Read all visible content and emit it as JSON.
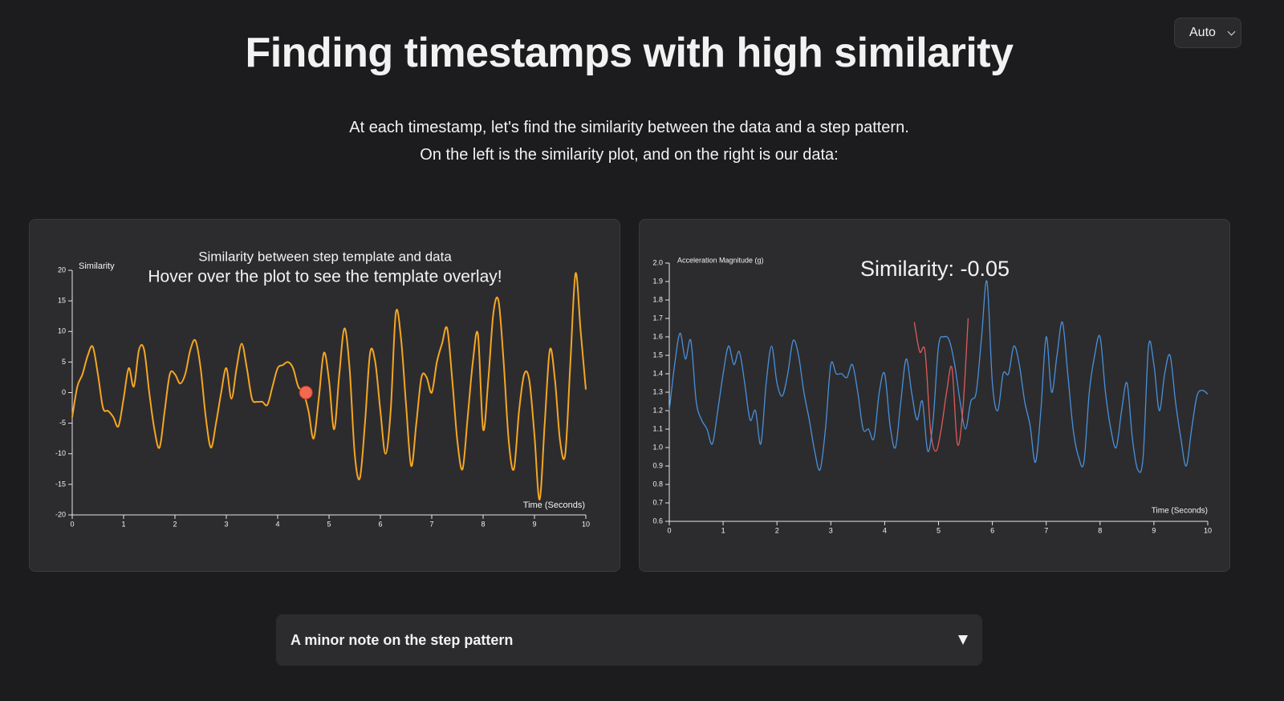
{
  "header": {
    "title": "Finding timestamps with high similarity",
    "intro": [
      "At each timestamp, let's find the similarity between the data and a step pattern.",
      "On the left is the similarity plot, and on the right is our data:"
    ]
  },
  "theme_select": "Auto",
  "details": {
    "summary": "A minor note on the step pattern"
  },
  "chart_data": [
    {
      "type": "line",
      "title": "Similarity between step template and data",
      "subtitle": "Hover over the plot to see the template overlay!",
      "x_label": "Time (Seconds)",
      "y_label": "Similarity",
      "color": "#f5a623",
      "x": [
        0,
        0.1,
        0.2,
        0.3,
        0.4,
        0.5,
        0.6,
        0.7,
        0.8,
        0.9,
        1,
        1.1,
        1.2,
        1.3,
        1.4,
        1.5,
        1.6,
        1.7,
        1.8,
        1.9,
        2,
        2.1,
        2.2,
        2.3,
        2.4,
        2.5,
        2.6,
        2.7,
        2.8,
        2.9,
        3,
        3.1,
        3.2,
        3.3,
        3.4,
        3.5,
        3.6,
        3.7,
        3.8,
        3.9,
        4,
        4.1,
        4.2,
        4.3,
        4.4,
        4.5,
        4.6,
        4.7,
        4.8,
        4.9,
        5,
        5.1,
        5.2,
        5.3,
        5.4,
        5.5,
        5.6,
        5.7,
        5.8,
        5.9,
        6,
        6.1,
        6.2,
        6.3,
        6.4,
        6.5,
        6.6,
        6.7,
        6.8,
        6.9,
        7,
        7.1,
        7.2,
        7.3,
        7.4,
        7.5,
        7.6,
        7.7,
        7.8,
        7.9,
        8,
        8.1,
        8.2,
        8.3,
        8.4,
        8.5,
        8.6,
        8.7,
        8.8,
        8.9,
        9,
        9.1,
        9.2,
        9.3,
        9.4,
        9.5,
        9.6,
        9.7,
        9.8,
        9.9,
        10
      ],
      "values": [
        -4,
        1,
        3,
        6,
        7.5,
        3,
        -2.5,
        -3,
        -4,
        -5.5,
        -1,
        4,
        1,
        7,
        7,
        0,
        -6,
        -9,
        -3,
        3,
        3,
        1.5,
        3,
        7,
        8.5,
        4,
        -4,
        -9,
        -5,
        0,
        4,
        -1,
        4,
        8,
        4,
        -1,
        -1.5,
        -1.5,
        -2,
        1,
        4,
        4.5,
        5,
        4,
        1,
        0,
        -3,
        -7.5,
        -1,
        6.5,
        2,
        -6,
        3,
        10.5,
        4,
        -10,
        -14,
        -5,
        6.5,
        5,
        -3,
        -10,
        -3,
        13,
        9,
        -2,
        -12,
        -5,
        2.5,
        2.5,
        0,
        5,
        8,
        10.5,
        2,
        -8,
        -12.5,
        -4,
        5,
        9.5,
        -6,
        2,
        13,
        15,
        5,
        -8,
        -12.5,
        -3,
        3,
        2,
        -7,
        -17.5,
        -5,
        7,
        2,
        -8,
        -10,
        5,
        19.5,
        10,
        0.5
      ],
      "marker": {
        "x": 4.55,
        "y": 0,
        "color": "#f06a50"
      },
      "xlim": [
        0,
        10
      ],
      "xticks": [
        0,
        1,
        2,
        3,
        4,
        5,
        6,
        7,
        8,
        9,
        10
      ],
      "ylim": [
        -20,
        20
      ],
      "yticks": [
        -20,
        -15,
        -10,
        -5,
        0,
        5,
        10,
        15,
        20
      ]
    },
    {
      "type": "line",
      "annotation": "Similarity: -0.05",
      "x_label": "Time (Seconds)",
      "y_label": "Acceleration Magnitude (g)",
      "color": "#4a90d9",
      "x": [
        0,
        0.1,
        0.2,
        0.3,
        0.4,
        0.5,
        0.6,
        0.7,
        0.8,
        0.9,
        1,
        1.1,
        1.2,
        1.3,
        1.4,
        1.5,
        1.6,
        1.7,
        1.8,
        1.9,
        2,
        2.1,
        2.2,
        2.3,
        2.4,
        2.5,
        2.6,
        2.7,
        2.8,
        2.9,
        3,
        3.1,
        3.2,
        3.3,
        3.4,
        3.5,
        3.6,
        3.7,
        3.8,
        3.9,
        4,
        4.1,
        4.2,
        4.3,
        4.4,
        4.5,
        4.6,
        4.7,
        4.8,
        4.9,
        5,
        5.1,
        5.2,
        5.3,
        5.4,
        5.5,
        5.6,
        5.7,
        5.8,
        5.9,
        6,
        6.1,
        6.2,
        6.3,
        6.4,
        6.5,
        6.6,
        6.7,
        6.8,
        6.9,
        7,
        7.1,
        7.2,
        7.3,
        7.4,
        7.5,
        7.6,
        7.7,
        7.8,
        7.9,
        8,
        8.1,
        8.2,
        8.3,
        8.4,
        8.5,
        8.6,
        8.7,
        8.8,
        8.9,
        9,
        9.1,
        9.2,
        9.3,
        9.4,
        9.5,
        9.6,
        9.7,
        9.8,
        9.9,
        10
      ],
      "values": [
        1.2,
        1.45,
        1.62,
        1.48,
        1.58,
        1.25,
        1.15,
        1.1,
        1.02,
        1.2,
        1.4,
        1.55,
        1.45,
        1.52,
        1.35,
        1.15,
        1.2,
        1.02,
        1.35,
        1.55,
        1.35,
        1.28,
        1.4,
        1.58,
        1.5,
        1.3,
        1.15,
        0.98,
        0.88,
        1.1,
        1.45,
        1.4,
        1.4,
        1.38,
        1.45,
        1.3,
        1.1,
        1.1,
        1.05,
        1.3,
        1.4,
        1.12,
        1,
        1.25,
        1.48,
        1.3,
        1.15,
        1.25,
        0.98,
        1.15,
        1.55,
        1.6,
        1.58,
        1.45,
        1.25,
        1.1,
        1.25,
        1.3,
        1.6,
        1.9,
        1.35,
        1.2,
        1.4,
        1.4,
        1.55,
        1.45,
        1.25,
        1.12,
        0.92,
        1.2,
        1.6,
        1.3,
        1.5,
        1.68,
        1.4,
        1.1,
        0.95,
        0.92,
        1.3,
        1.5,
        1.6,
        1.3,
        1.1,
        1,
        1.2,
        1.35,
        1.05,
        0.88,
        0.95,
        1.55,
        1.45,
        1.2,
        1.4,
        1.5,
        1.25,
        1.05,
        0.9,
        1.1,
        1.28,
        1.31,
        1.29
      ],
      "overlay": {
        "color": "#e05a5a",
        "x": [
          4.55,
          4.65,
          4.75,
          4.85,
          4.95,
          5.05,
          5.15,
          5.25,
          5.35,
          5.45,
          5.55
        ],
        "values": [
          1.68,
          1.52,
          1.52,
          1.1,
          0.98,
          1.1,
          1.3,
          1.43,
          1.02,
          1.2,
          1.7
        ]
      },
      "xlim": [
        0,
        10
      ],
      "xticks": [
        0,
        1,
        2,
        3,
        4,
        5,
        6,
        7,
        8,
        9,
        10
      ],
      "ylim": [
        0.6,
        2
      ],
      "yticks": [
        0.6,
        0.7,
        0.8,
        0.9,
        {
          "value": 1,
          "label": "1.0"
        },
        1.1,
        1.2,
        1.3,
        1.4,
        1.5,
        1.6,
        1.7,
        1.8,
        1.9,
        {
          "value": 2,
          "label": "2.0"
        }
      ]
    }
  ]
}
